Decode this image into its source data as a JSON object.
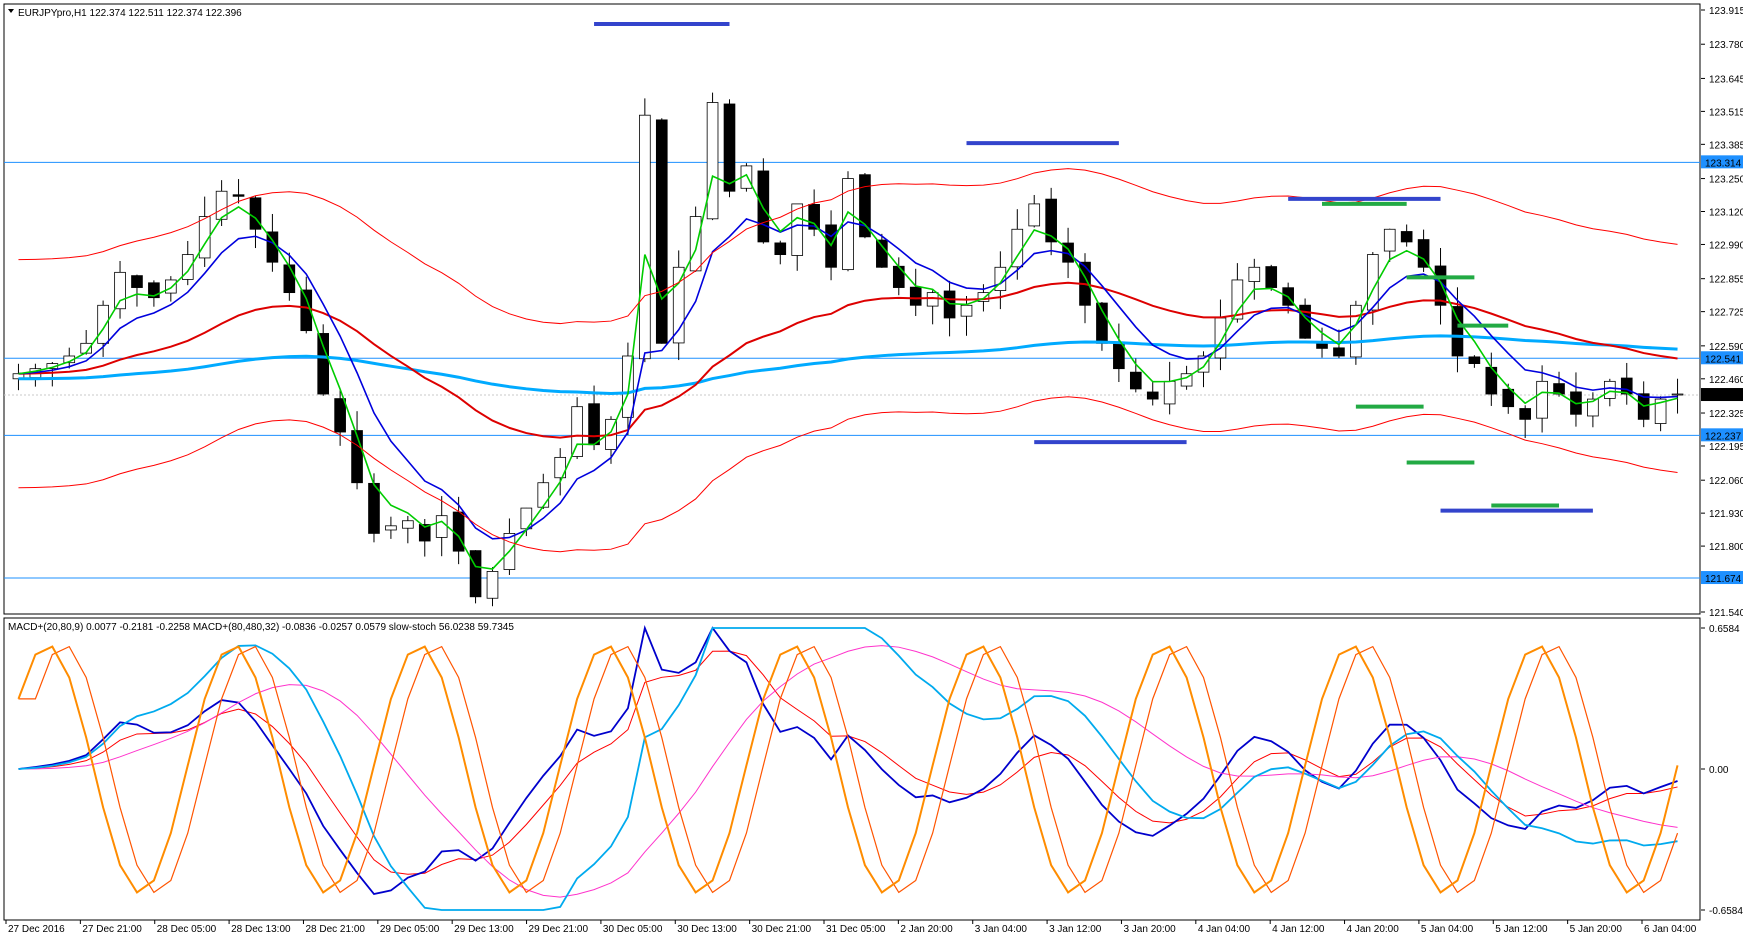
{
  "window": {
    "symbol_header": "EURJPYpro,H1  122.374 122.511 122.374 122.396",
    "indicator_header": "MACD+(20,80,9) 0.0077 -0.2181 -0.2258   MACD+(80,480,32) -0.0836 -0.0257 0.0579   slow-stoch 56.0238 59.7345"
  },
  "colors": {
    "background": "#ffffff",
    "bull_candle": "#ffffff",
    "bear_candle": "#000000",
    "ema_fast": "#00cc00",
    "ema_mid": "#0000dd",
    "ema_slow": "#dd0000",
    "ema_long": "#00aaff",
    "bands": "#ff0000",
    "hlines": "#1e90ff",
    "resistance_marks": "#3344cc",
    "support_marks": "#22aa44",
    "macd1": "#0000cc",
    "macd1_signal": "#ff0000",
    "macd2": "#00aaee",
    "macd2_signal": "#ff33cc",
    "stoch_main": "#ff8c00",
    "stoch_signal": "#ff5500"
  },
  "chart_data": [
    {
      "type": "candlestick",
      "title": "EURJPYpro,H1",
      "ylim": [
        121.54,
        123.915
      ],
      "yticks": [
        "123.915",
        "123.780",
        "123.645",
        "123.515",
        "123.385",
        "123.250",
        "123.120",
        "122.990",
        "122.855",
        "122.725",
        "122.590",
        "122.460",
        "122.325",
        "122.195",
        "122.060",
        "121.930",
        "121.800",
        "121.670",
        "121.540"
      ],
      "xticks": [
        "27 Dec 2016",
        "27 Dec 21:00",
        "28 Dec 05:00",
        "28 Dec 13:00",
        "28 Dec 21:00",
        "29 Dec 05:00",
        "29 Dec 13:00",
        "29 Dec 21:00",
        "30 Dec 05:00",
        "30 Dec 13:00",
        "30 Dec 21:00",
        "31 Dec 05:00",
        "2 Jan 20:00",
        "3 Jan 04:00",
        "3 Jan 12:00",
        "3 Jan 20:00",
        "4 Jan 04:00",
        "4 Jan 12:00",
        "4 Jan 20:00",
        "5 Jan 04:00",
        "5 Jan 12:00",
        "5 Jan 20:00",
        "6 Jan 04:00"
      ],
      "horizontal_levels": [
        "123.314",
        "122.541",
        "122.237",
        "121.674"
      ],
      "current_price": "122.396",
      "close_path": [
        122.48,
        122.5,
        122.52,
        122.55,
        122.6,
        122.75,
        122.88,
        122.82,
        122.78,
        122.85,
        122.95,
        123.1,
        123.2,
        123.18,
        123.05,
        122.92,
        122.8,
        122.65,
        122.4,
        122.25,
        122.05,
        121.85,
        121.88,
        121.9,
        121.82,
        121.92,
        121.78,
        121.6,
        121.7,
        121.85,
        121.95,
        122.05,
        122.15,
        122.35,
        122.2,
        122.3,
        122.55,
        123.5,
        122.6,
        122.9,
        123.1,
        123.55,
        123.2,
        123.3,
        123.0,
        122.95,
        123.15,
        123.05,
        122.9,
        123.25,
        123.02,
        122.9,
        122.82,
        122.75,
        122.8,
        122.7,
        122.75,
        122.8,
        122.9,
        123.05,
        123.15,
        123.0,
        122.92,
        122.75,
        122.6,
        122.5,
        122.42,
        122.38,
        122.45,
        122.48,
        122.55,
        122.7,
        122.85,
        122.9,
        122.82,
        122.75,
        122.62,
        122.58,
        122.55,
        122.75,
        122.95,
        123.05,
        123.0,
        122.9,
        122.75,
        122.55,
        122.52,
        122.4,
        122.35,
        122.3,
        122.45,
        122.4,
        122.32,
        122.38,
        122.45,
        122.4,
        122.3,
        122.38,
        122.4
      ]
    },
    {
      "type": "line",
      "title": "MACD+ / slow-stoch",
      "ylim": [
        -0.6584,
        0.6584
      ],
      "yticks": [
        "0.6584",
        "0.00",
        "-0.6584"
      ],
      "stoch_period_candles": 11
    }
  ]
}
